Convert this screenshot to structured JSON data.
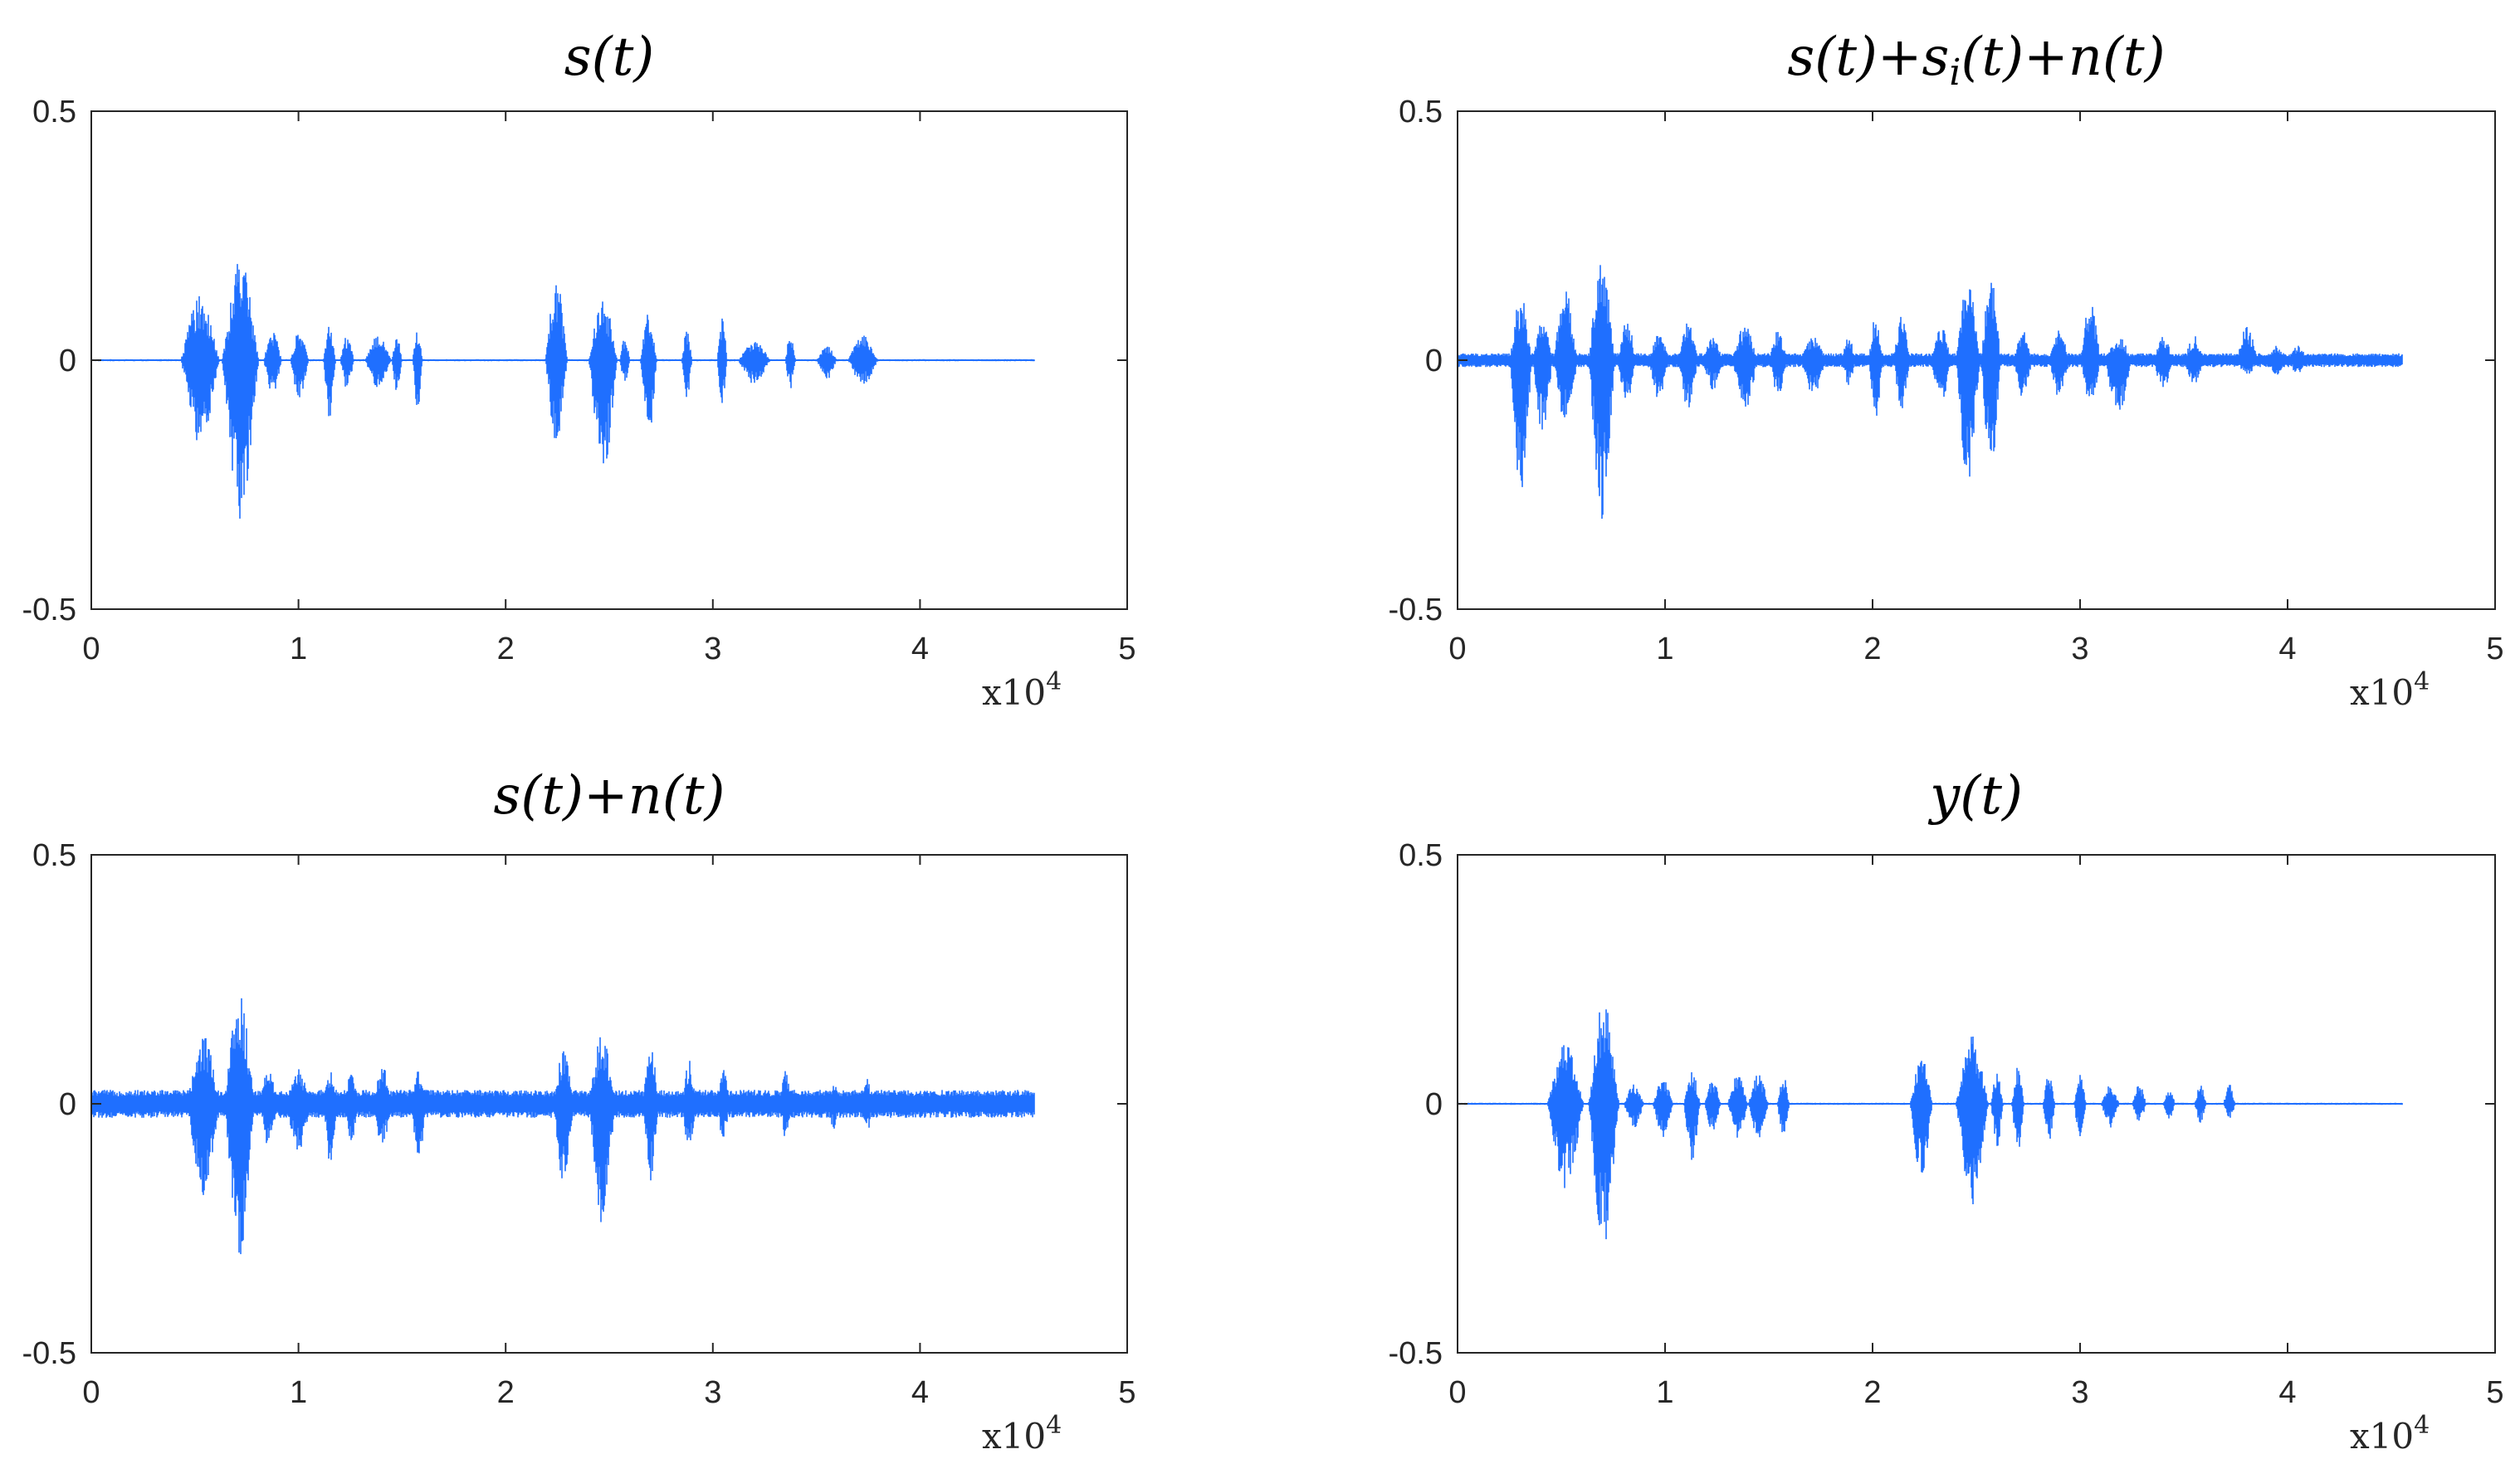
{
  "colors": {
    "signal": "#1f6fff",
    "axes": "#262626",
    "background": "#ffffff"
  },
  "chart_data": [
    {
      "type": "line",
      "title": "s(t)",
      "xlim": [
        0,
        50000
      ],
      "ylim": [
        -0.5,
        0.5
      ],
      "xticks": [
        0,
        1,
        2,
        3,
        4,
        5
      ],
      "yticks": [
        -0.5,
        0,
        0.5
      ],
      "xtick_labels": [
        "0",
        "1",
        "2",
        "3",
        "4",
        "5"
      ],
      "ytick_labels": [
        "-0.5",
        "0",
        "0.5"
      ],
      "x_multiplier": "x10^4",
      "grid": false,
      "series": [
        {
          "values_note": "speech waveform",
          "x_end": 45500,
          "noise": 0.002,
          "bursts": [
            [
              4300,
              6200,
              0.13,
              0.17
            ],
            [
              6300,
              8100,
              0.21,
              0.32
            ],
            [
              8300,
              9200,
              0.06,
              0.07
            ],
            [
              9600,
              10500,
              0.06,
              0.08
            ],
            [
              11200,
              11800,
              0.07,
              0.13
            ],
            [
              12000,
              12700,
              0.05,
              0.06
            ],
            [
              13200,
              14500,
              0.05,
              0.06
            ],
            [
              14500,
              15000,
              0.06,
              0.07
            ],
            [
              15500,
              16000,
              0.06,
              0.1
            ],
            [
              21900,
              23000,
              0.17,
              0.17
            ],
            [
              24000,
              25400,
              0.13,
              0.23
            ],
            [
              25500,
              26000,
              0.05,
              0.05
            ],
            [
              26500,
              27300,
              0.1,
              0.17
            ],
            [
              28500,
              29000,
              0.07,
              0.08
            ],
            [
              30200,
              30700,
              0.09,
              0.09
            ],
            [
              31200,
              32800,
              0.04,
              0.05
            ],
            [
              33500,
              34000,
              0.06,
              0.06
            ],
            [
              35000,
              36000,
              0.03,
              0.04
            ],
            [
              36500,
              38000,
              0.05,
              0.05
            ]
          ]
        }
      ]
    },
    {
      "type": "line",
      "title": "s(t)+s_i(t)+n(t)",
      "xlim": [
        0,
        50000
      ],
      "ylim": [
        -0.5,
        0.5
      ],
      "xticks": [
        0,
        1,
        2,
        3,
        4,
        5
      ],
      "yticks": [
        -0.5,
        0,
        0.5
      ],
      "xtick_labels": [
        "0",
        "1",
        "2",
        "3",
        "4",
        "5"
      ],
      "ytick_labels": [
        "-0.5",
        "0",
        "0.5"
      ],
      "x_multiplier": "x10^4",
      "grid": false,
      "series": [
        {
          "values_note": "speech + interference + noise",
          "x_end": 45500,
          "noise": 0.014,
          "bursts": [
            [
              2500,
              3600,
              0.13,
              0.27
            ],
            [
              3600,
              4600,
              0.08,
              0.15
            ],
            [
              4600,
              5800,
              0.14,
              0.13
            ],
            [
              6300,
              7600,
              0.21,
              0.32
            ],
            [
              7700,
              8600,
              0.09,
              0.09
            ],
            [
              9200,
              10200,
              0.06,
              0.08
            ],
            [
              10600,
              11600,
              0.08,
              0.1
            ],
            [
              11800,
              12800,
              0.05,
              0.06
            ],
            [
              13200,
              14500,
              0.07,
              0.1
            ],
            [
              15000,
              15900,
              0.06,
              0.07
            ],
            [
              16500,
              17800,
              0.05,
              0.07
            ],
            [
              18500,
              19200,
              0.05,
              0.05
            ],
            [
              19800,
              20500,
              0.09,
              0.12
            ],
            [
              21000,
              21800,
              0.09,
              0.11
            ],
            [
              22800,
              23800,
              0.07,
              0.09
            ],
            [
              24000,
              25200,
              0.16,
              0.25
            ],
            [
              25200,
              26200,
              0.17,
              0.23
            ],
            [
              26800,
              27700,
              0.06,
              0.08
            ],
            [
              28500,
              29500,
              0.06,
              0.08
            ],
            [
              30000,
              31000,
              0.12,
              0.09
            ],
            [
              31200,
              32500,
              0.05,
              0.12
            ],
            [
              33500,
              34500,
              0.05,
              0.06
            ],
            [
              35000,
              36000,
              0.05,
              0.05
            ],
            [
              37500,
              38600,
              0.07,
              0.03
            ],
            [
              39000,
              40000,
              0.03,
              0.03
            ],
            [
              40000,
              41000,
              0.03,
              0.03
            ]
          ]
        }
      ]
    },
    {
      "type": "line",
      "title": "s(t)+n(t)",
      "xlim": [
        0,
        50000
      ],
      "ylim": [
        -0.5,
        0.5
      ],
      "xticks": [
        0,
        1,
        2,
        3,
        4,
        5
      ],
      "yticks": [
        -0.5,
        0,
        0.5
      ],
      "xtick_labels": [
        "0",
        "1",
        "2",
        "3",
        "4",
        "5"
      ],
      "ytick_labels": [
        "-0.5",
        "0",
        "0.5"
      ],
      "x_multiplier": "x10^4",
      "grid": false,
      "series": [
        {
          "values_note": "speech + noise",
          "x_end": 45500,
          "noise": 0.028,
          "bursts": [
            [
              4600,
              6200,
              0.15,
              0.19
            ],
            [
              6400,
              7900,
              0.22,
              0.31
            ],
            [
              8100,
              9000,
              0.07,
              0.09
            ],
            [
              9400,
              10600,
              0.07,
              0.1
            ],
            [
              11200,
              11900,
              0.07,
              0.14
            ],
            [
              12200,
              12900,
              0.07,
              0.08
            ],
            [
              13600,
              14500,
              0.08,
              0.09
            ],
            [
              15400,
              16200,
              0.07,
              0.12
            ],
            [
              22300,
              23300,
              0.11,
              0.17
            ],
            [
              24000,
              25300,
              0.14,
              0.24
            ],
            [
              26600,
              27400,
              0.12,
              0.16
            ],
            [
              28500,
              29200,
              0.09,
              0.1
            ],
            [
              30200,
              30800,
              0.08,
              0.08
            ],
            [
              33200,
              33800,
              0.07,
              0.07
            ],
            [
              35500,
              36200,
              0.04,
              0.05
            ],
            [
              37200,
              37700,
              0.07,
              0.06
            ]
          ]
        }
      ]
    },
    {
      "type": "line",
      "title": "y(t)",
      "xlim": [
        0,
        50000
      ],
      "ylim": [
        -0.5,
        0.5
      ],
      "xticks": [
        0,
        1,
        2,
        3,
        4,
        5
      ],
      "yticks": [
        -0.5,
        0,
        0.5
      ],
      "xtick_labels": [
        "0",
        "1",
        "2",
        "3",
        "4",
        "5"
      ],
      "ytick_labels": [
        "-0.5",
        "0",
        "0.5"
      ],
      "x_multiplier": "x10^4",
      "grid": false,
      "series": [
        {
          "values_note": "output signal",
          "x_end": 45500,
          "noise": 0.002,
          "bursts": [
            [
              4300,
              6100,
              0.12,
              0.17
            ],
            [
              6300,
              7800,
              0.21,
              0.31
            ],
            [
              8000,
              9000,
              0.04,
              0.05
            ],
            [
              9400,
              10400,
              0.05,
              0.07
            ],
            [
              10900,
              11700,
              0.07,
              0.12
            ],
            [
              11900,
              12700,
              0.05,
              0.06
            ],
            [
              13000,
              14000,
              0.06,
              0.07
            ],
            [
              14000,
              15000,
              0.06,
              0.07
            ],
            [
              15400,
              16000,
              0.06,
              0.08
            ],
            [
              21800,
              22900,
              0.1,
              0.15
            ],
            [
              24000,
              25600,
              0.14,
              0.21
            ],
            [
              25700,
              26300,
              0.07,
              0.09
            ],
            [
              26700,
              27300,
              0.08,
              0.1
            ],
            [
              28200,
              28800,
              0.06,
              0.08
            ],
            [
              29700,
              30300,
              0.06,
              0.07
            ],
            [
              31000,
              31900,
              0.04,
              0.05
            ],
            [
              32500,
              33200,
              0.04,
              0.04
            ],
            [
              34000,
              34600,
              0.03,
              0.03
            ],
            [
              35500,
              36100,
              0.04,
              0.04
            ],
            [
              36900,
              37500,
              0.04,
              0.03
            ]
          ]
        }
      ]
    }
  ]
}
